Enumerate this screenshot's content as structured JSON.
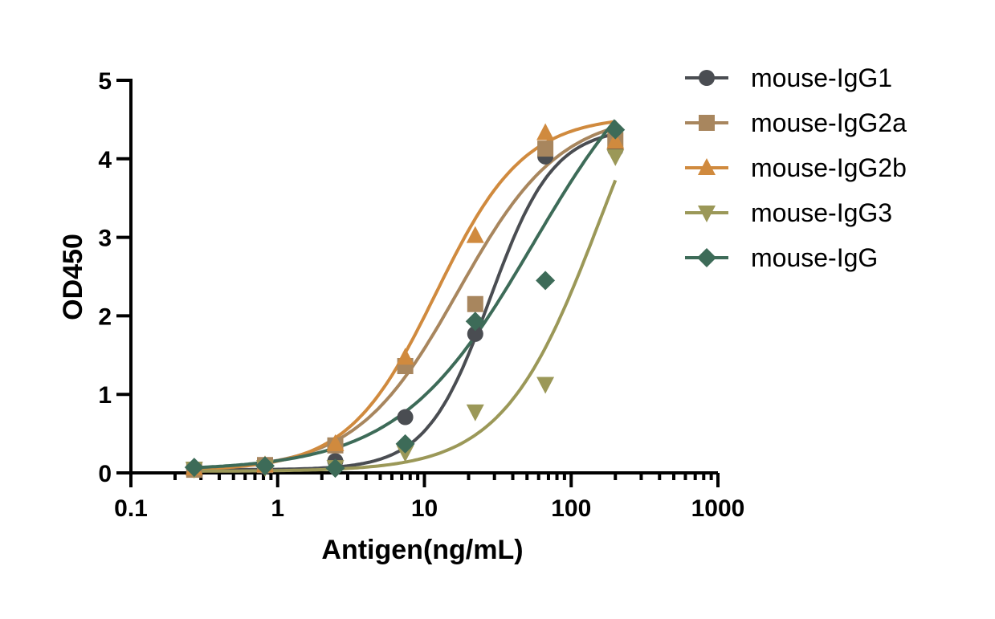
{
  "chart_data": {
    "type": "scatter",
    "title": "",
    "xlabel": "Antigen(ng/mL)",
    "ylabel": "OD450",
    "x_scale": "log",
    "xlim": [
      0.1,
      1000
    ],
    "ylim": [
      0,
      5
    ],
    "x_ticks": [
      "0.1",
      "1",
      "10",
      "100",
      "1000"
    ],
    "y_ticks": [
      "0",
      "1",
      "2",
      "3",
      "4",
      "5"
    ],
    "grid": false,
    "legend_position": "top-right",
    "series": [
      {
        "name": "mouse-IgG1",
        "marker": "circle",
        "color": "#4a4d52",
        "x": [
          0.27,
          0.82,
          2.47,
          7.4,
          22.2,
          66.7,
          200
        ],
        "y": [
          0.05,
          0.08,
          0.15,
          0.71,
          1.77,
          4.03,
          4.12
        ],
        "fit": {
          "bottom": 0.04,
          "top": 4.4,
          "ec50": 28,
          "hill": 2.0
        }
      },
      {
        "name": "mouse-IgG2a",
        "marker": "square",
        "color": "#a8865e",
        "x": [
          0.27,
          0.82,
          2.47,
          7.4,
          22.2,
          66.7,
          200
        ],
        "y": [
          0.04,
          0.1,
          0.35,
          1.36,
          2.15,
          4.13,
          4.24
        ],
        "fit": {
          "bottom": 0.03,
          "top": 4.6,
          "ec50": 17,
          "hill": 1.25
        }
      },
      {
        "name": "mouse-IgG2b",
        "marker": "triangle-up",
        "color": "#d08a3e",
        "x": [
          0.27,
          0.82,
          2.47,
          7.4,
          22.2,
          66.7,
          200
        ],
        "y": [
          0.06,
          0.1,
          0.37,
          1.47,
          3.02,
          4.33,
          4.22
        ],
        "fit": {
          "bottom": 0.03,
          "top": 4.55,
          "ec50": 12,
          "hill": 1.45
        }
      },
      {
        "name": "mouse-IgG3",
        "marker": "triangle-down",
        "color": "#9b9858",
        "x": [
          0.27,
          0.82,
          2.47,
          7.4,
          22.2,
          66.7,
          200
        ],
        "y": [
          0.05,
          0.07,
          0.07,
          0.26,
          0.78,
          1.13,
          4.03
        ],
        "fit": {
          "bottom": 0.02,
          "top": 6.5,
          "ec50": 160,
          "hill": 1.3
        }
      },
      {
        "name": "mouse-IgG",
        "marker": "diamond",
        "color": "#3d6b58",
        "x": [
          0.27,
          0.82,
          2.47,
          7.4,
          22.2,
          66.7,
          200
        ],
        "y": [
          0.07,
          0.09,
          0.06,
          0.37,
          1.93,
          2.45,
          4.37
        ],
        "fit": {
          "bottom": 0.03,
          "top": 5.8,
          "ec50": 55,
          "hill": 0.95
        }
      }
    ]
  }
}
